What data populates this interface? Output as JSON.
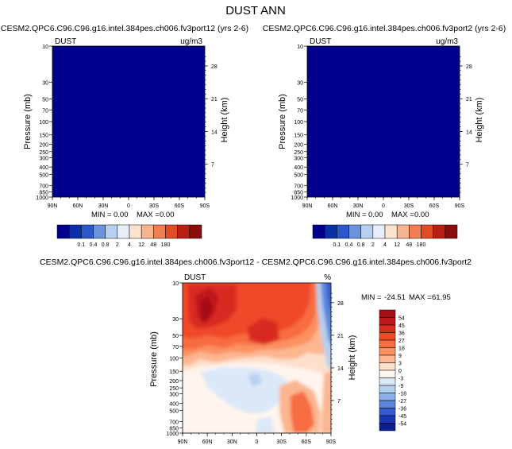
{
  "page_title": "DUST ANN",
  "chart_data": [
    {
      "type": "heatmap",
      "title": "CESM2.QPC6.C96.C96.g16.intel.384pes.ch006.fv3port12 (yrs 2-6)",
      "left_label": "DUST",
      "units": "ug/m3",
      "xlabel": "",
      "ylabel": "Pressure (mb)",
      "ylabel_right": "Height (km)",
      "x_ticks": [
        "90N",
        "60N",
        "30N",
        "0",
        "30S",
        "60S",
        "90S"
      ],
      "y_ticks": [
        "10",
        "30",
        "50",
        "70",
        "100",
        "150",
        "200",
        "250",
        "300",
        "400",
        "500",
        "700",
        "850",
        "1000"
      ],
      "y_ticks_right": [
        "28",
        "21",
        "14",
        "7"
      ],
      "ylim": [
        1000,
        10
      ],
      "stats": {
        "min_label": "MIN =",
        "min": "0.00",
        "max_label": "MAX =",
        "max": "0.00"
      },
      "field": "uniform",
      "fill_color": "#00008c",
      "colorbar": {
        "levels": [
          "0.1",
          "0.4",
          "0.8",
          "2",
          "4",
          "12",
          "48",
          "180"
        ],
        "colors": [
          "#00008c",
          "#0b2fa4",
          "#2b58c8",
          "#6a93dc",
          "#b7d0f0",
          "#e8eef8",
          "#fde2cd",
          "#f8b48e",
          "#f17d53",
          "#e04c27",
          "#bb1f13",
          "#8a0d0c"
        ]
      }
    },
    {
      "type": "heatmap",
      "title": "CESM2.QPC6.C96.C96.g16.intel.384pes.ch006.fv3port2 (yrs 2-6)",
      "left_label": "DUST",
      "units": "ug/m3",
      "xlabel": "",
      "ylabel": "Pressure (mb)",
      "ylabel_right": "Height (km)",
      "x_ticks": [
        "90N",
        "60N",
        "30N",
        "0",
        "30S",
        "60S",
        "90S"
      ],
      "y_ticks": [
        "10",
        "30",
        "50",
        "70",
        "100",
        "150",
        "200",
        "250",
        "300",
        "400",
        "500",
        "700",
        "850",
        "1000"
      ],
      "y_ticks_right": [
        "28",
        "21",
        "14",
        "7"
      ],
      "ylim": [
        1000,
        10
      ],
      "stats": {
        "min_label": "MIN =",
        "min": "0.00",
        "max_label": "MAX =",
        "max": "0.00"
      },
      "field": "uniform",
      "fill_color": "#00008c",
      "colorbar": {
        "levels": [
          "0.1",
          "0.4",
          "0.8",
          "2",
          "4",
          "12",
          "48",
          "180"
        ],
        "colors": [
          "#00008c",
          "#0b2fa4",
          "#2b58c8",
          "#6a93dc",
          "#b7d0f0",
          "#e8eef8",
          "#fde2cd",
          "#f8b48e",
          "#f17d53",
          "#e04c27",
          "#bb1f13",
          "#8a0d0c"
        ]
      }
    },
    {
      "type": "heatmap",
      "title": "CESM2.QPC6.C96.C96.g16.intel.384pes.ch006.fv3port12 - CESM2.QPC6.C96.C96.g16.intel.384pes.ch006.fv3port2",
      "left_label": "DUST",
      "units": "%",
      "xlabel": "",
      "ylabel": "Pressure (mb)",
      "ylabel_right": "Height (km)",
      "x_ticks": [
        "90N",
        "60N",
        "30N",
        "0",
        "30S",
        "60S",
        "90S"
      ],
      "y_ticks": [
        "10",
        "30",
        "50",
        "70",
        "100",
        "150",
        "200",
        "250",
        "300",
        "400",
        "500",
        "700",
        "850",
        "1000"
      ],
      "y_ticks_right": [
        "28",
        "21",
        "14",
        "7"
      ],
      "ylim": [
        1000,
        10
      ],
      "stats": {
        "min_label": "MIN =",
        "min": "-24.51",
        "max_label": "MAX =",
        "max": "61.95"
      },
      "field": "difference",
      "colorbar": {
        "levels": [
          "54",
          "45",
          "36",
          "27",
          "18",
          "9",
          "3",
          "0",
          "-3",
          "-9",
          "-18",
          "-27",
          "-36",
          "-45",
          "-54"
        ],
        "colors": [
          "#a50f15",
          "#c0191b",
          "#d92b21",
          "#ef4a2a",
          "#f76c3f",
          "#fb9060",
          "#fcb690",
          "#fde0cc",
          "#fff5ee",
          "#dbe8f8",
          "#b5d0f0",
          "#8cb1e8",
          "#5c86dc",
          "#3259cd",
          "#1a36b2",
          "#0a1e8c"
        ]
      }
    }
  ]
}
